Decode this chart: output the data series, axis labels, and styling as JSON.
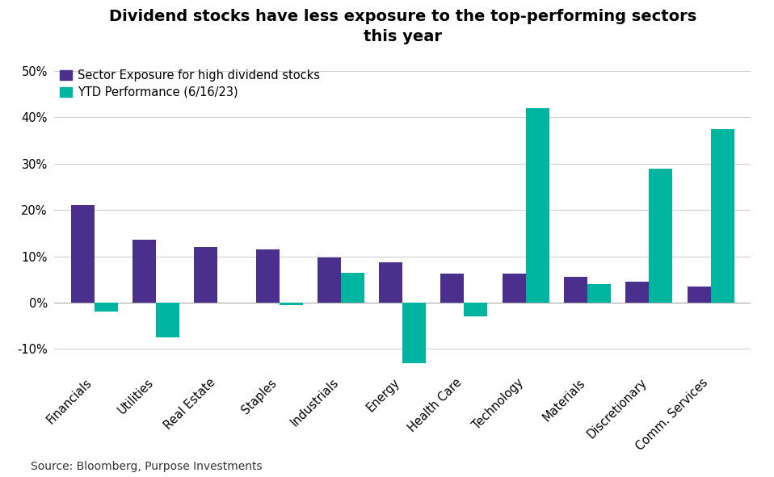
{
  "title": "Dividend stocks have less exposure to the top-performing sectors\nthis year",
  "categories": [
    "Financials",
    "Utilities",
    "Real Estate",
    "Staples",
    "Industrials",
    "Energy",
    "Health Care",
    "Technology",
    "Materials",
    "Discretionary",
    "Comm. Services"
  ],
  "sector_exposure": [
    21.0,
    13.5,
    12.0,
    11.5,
    9.8,
    8.7,
    6.3,
    6.2,
    5.5,
    4.5,
    3.5
  ],
  "ytd_performance": [
    -2.0,
    -7.5,
    0.0,
    -0.5,
    6.5,
    -13.0,
    -3.0,
    42.0,
    4.0,
    29.0,
    37.5
  ],
  "bar_color_sector": "#4B2F8C",
  "bar_color_ytd": "#00B5A0",
  "legend_labels": [
    "Sector Exposure for high dividend stocks",
    "YTD Performance (6/16/23)"
  ],
  "ylim_min": -15,
  "ylim_max": 53,
  "yticks": [
    -10,
    0,
    10,
    20,
    30,
    40,
    50
  ],
  "ytick_labels": [
    "-10%",
    "0%",
    "10%",
    "20%",
    "30%",
    "40%",
    "50%"
  ],
  "source_text": "Source: Bloomberg, Purpose Investments",
  "background_color": "#ffffff",
  "grid_color": "#d0d0d0",
  "title_fontsize": 14,
  "tick_fontsize": 10.5,
  "legend_fontsize": 10.5,
  "source_fontsize": 10
}
